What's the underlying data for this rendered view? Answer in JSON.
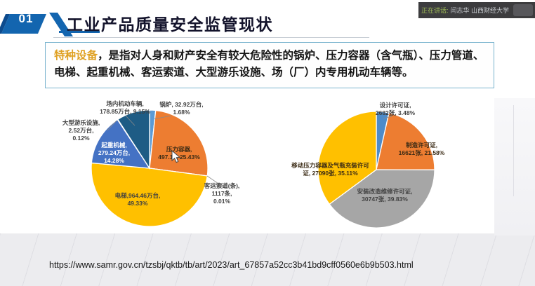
{
  "meeting_bar": {
    "status_label": "正在讲话:",
    "speaker": "闫志华 山西财经大学",
    "bar_color": "#3C3C3E",
    "status_color": "#A3C159"
  },
  "header": {
    "number": "01",
    "title": "工业产品质量安全监管现状",
    "accent_color": "#1365AF"
  },
  "intro": {
    "highlight": "特种设备",
    "highlight_color": "#DFA123",
    "text": "，是指对人身和财产安全有较大危险性的锅炉、压力容器（含气瓶）、压力管道、电梯、起重机械、客运索道、大型游乐设施、场（厂）内专用机动车辆等。"
  },
  "source_url": "https://www.samr.gov.cn/tzsbj/qktb/tb/art/2023/art_67857a52cc3b41bd9cff0560e6b9b503.html",
  "chart_data": [
    {
      "type": "pie",
      "title": "",
      "legend": "none",
      "start_angle_deg": -90,
      "direction": "clockwise",
      "slices": [
        {
          "label": "锅炉",
          "amount": "32.92万台",
          "pct": 1.68,
          "color": "#5B9BD5",
          "display": "锅炉, 32.92万台,\n1.68%"
        },
        {
          "label": "压力容器",
          "amount": "497.15",
          "pct": 25.43,
          "color": "#ED7D31",
          "display": "压力容器,\n497.15, 25.43%"
        },
        {
          "label": "客运索道(条)",
          "amount": "1117条",
          "pct": 0.01,
          "color": "#A5A5A5",
          "display": "客运索道(条),\n1117条,\n0.01%"
        },
        {
          "label": "电梯",
          "amount": "964.46万台",
          "pct": 49.33,
          "color": "#FFC000",
          "display": "电梯,964.46万台,\n49.33%"
        },
        {
          "label": "起重机械",
          "amount": "279.24万台",
          "pct": 14.28,
          "color": "#4472C4",
          "display": "起重机械,\n279.24万台,\n14.28%"
        },
        {
          "label": "大型游乐设施",
          "amount": "2.52万台",
          "pct": 0.12,
          "color": "#70AD47",
          "display": "大型游乐设施,\n2.52万台,\n0.12%"
        },
        {
          "label": "场内机动车辆",
          "amount": "178.85万台",
          "pct": 9.15,
          "color": "#1E5C85",
          "display": "场内机动车辆,\n178.85万台, 9.15%"
        }
      ]
    },
    {
      "type": "pie",
      "title": "",
      "legend": "none",
      "start_angle_deg": -90,
      "direction": "clockwise",
      "slices": [
        {
          "label": "设计许可证",
          "amount": "2682张",
          "pct": 3.48,
          "color": "#4D8BC9",
          "display": "设计许可证,\n2682张, 3.48%"
        },
        {
          "label": "制造许可证",
          "amount": "16621张",
          "pct": 21.58,
          "color": "#ED7D31",
          "display": "制造许可证,\n16621张, 21.58%"
        },
        {
          "label": "安装改造维修许可证",
          "amount": "30747张",
          "pct": 39.83,
          "color": "#A6A6A6",
          "display": "安装改造维修许可证,\n30747张, 39.83%"
        },
        {
          "label": "移动压力容器及气瓶充装许可证",
          "amount": "27090张",
          "pct": 35.11,
          "color": "#FFC000",
          "display": "移动压力容器及气瓶充装许可\n证, 27090张, 35.11%"
        }
      ]
    }
  ]
}
